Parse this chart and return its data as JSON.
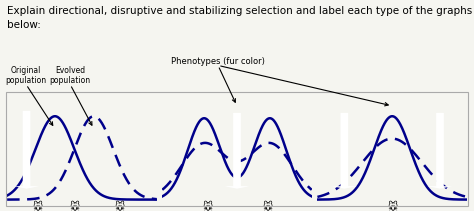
{
  "title_text": "Explain directional, disruptive and stabilizing selection and label each type of the graphs\nbelow:",
  "title_fontsize": 7.5,
  "outer_bg": "#f5f5f0",
  "border_color": "#aaaaaa",
  "curve_color": "#00008B",
  "panel_bg": "#adb8bc",
  "arrow_color": "#ffffff",
  "label_orig": "Original\npopulation",
  "label_evol": "Evolved\npopulation",
  "label_pheno": "Phenotypes (fur color)",
  "panel1_solid_mu": 3.2,
  "panel1_solid_sigma": 1.3,
  "panel1_solid_amp": 0.82,
  "panel1_dash_mu": 5.8,
  "panel1_dash_sigma": 1.3,
  "panel1_dash_amp": 0.82,
  "panel2_solid_mu1": 2.8,
  "panel2_solid_mu2": 7.2,
  "panel2_solid_sigma": 1.1,
  "panel2_solid_amp": 0.8,
  "panel2_dash_mu1": 2.8,
  "panel2_dash_mu2": 7.2,
  "panel2_dash_sigma": 1.5,
  "panel2_dash_amp": 0.55,
  "panel3_solid_mu": 5.0,
  "panel3_solid_sigma": 1.2,
  "panel3_solid_amp": 0.82,
  "panel3_dash_mu": 5.0,
  "panel3_dash_sigma": 2.0,
  "panel3_dash_amp": 0.6
}
